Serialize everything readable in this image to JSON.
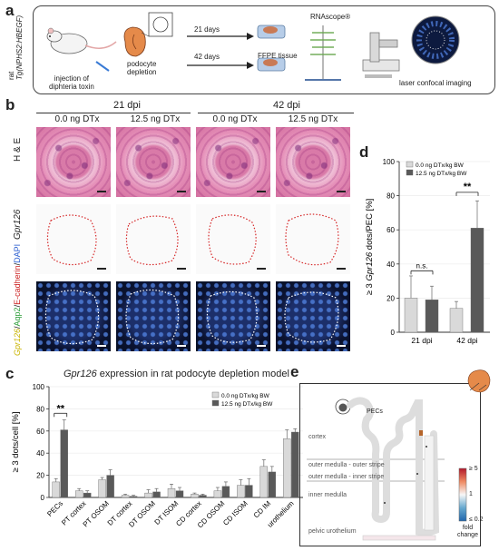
{
  "panels": {
    "a": {
      "label": "a",
      "species": "rat",
      "strain": "Tg(NPHS2:HBEGF)",
      "step1": [
        "injection of",
        "diphteria toxin"
      ],
      "step2": [
        "podocyte",
        "depletion"
      ],
      "time1": "21 days",
      "time2": "42 days",
      "ffpe": "FFPE tissue",
      "rnascope": "RNAscope®",
      "imaging": "laser confocal imaging"
    },
    "b": {
      "label": "b",
      "timepoints": [
        "21 dpi",
        "42 dpi"
      ],
      "conditions": [
        "0.0 ng DTx",
        "12.5 ng DTx",
        "0.0 ng DTx",
        "12.5 ng DTx"
      ],
      "row_labels": [
        "H & E",
        "Gpr126"
      ],
      "fluor_label": [
        "Gpr126",
        "/",
        "Aqp2",
        "/",
        "E-cadherin",
        "/",
        "DAPI"
      ],
      "colors": {
        "gpr126": "#c9b400",
        "aqp2": "#2e9e3a",
        "ecad": "#cc2222",
        "dapi": "#2c5fd0",
        "outline_red": "#d62728"
      }
    },
    "c": {
      "label": "c",
      "title_italic": "Gpr126",
      "title_rest": " expression in rat podocyte depletion model"
    },
    "d": {
      "label": "d"
    },
    "e": {
      "label": "e",
      "pecs": "PECs",
      "regions": [
        "cortex",
        "outer medulla - outer stripe",
        "outer medulla - inner stripe",
        "inner medulla",
        "pelvic urothelium"
      ],
      "colorbar_labels": [
        "≥ 5",
        "1",
        "≤ 0.2"
      ],
      "colorbar_title": [
        "fold",
        "change"
      ]
    }
  },
  "chart_data": [
    {
      "type": "bar",
      "panel": "c",
      "title": "Gpr126 expression in rat podocyte depletion model",
      "ylabel": "≥ 3 dots/cell [%]",
      "ylim": [
        0,
        100
      ],
      "yticks": [
        0,
        20,
        40,
        60,
        80,
        100
      ],
      "categories": [
        "PECs",
        "PT cortex",
        "PT OSOM",
        "DT cortex",
        "DT OSOM",
        "DT ISOM",
        "CD cortex",
        "CD OSOM",
        "CD ISOM",
        "CD IM",
        "urothelium"
      ],
      "series": [
        {
          "name": "0.0 ng DTx/kg BW",
          "color": "#d9d9d9",
          "values": [
            14,
            6,
            16,
            2,
            4,
            8,
            3,
            6,
            11,
            28,
            53
          ],
          "errors": [
            3,
            2,
            2,
            1,
            3,
            4,
            1,
            3,
            5,
            6,
            8
          ]
        },
        {
          "name": "12.5 ng DTx/kg BW",
          "color": "#595959",
          "values": [
            61,
            4,
            20,
            1,
            5,
            6,
            2,
            10,
            11,
            23,
            59
          ],
          "errors": [
            9,
            2,
            5,
            1,
            3,
            3,
            1,
            4,
            6,
            5,
            3
          ]
        }
      ],
      "annotations": [
        "**"
      ],
      "legend": "top-right"
    },
    {
      "type": "bar",
      "panel": "d",
      "ylabel": "≥ 3 Gpr126 dots/PEC [%]",
      "ylim": [
        0,
        100
      ],
      "yticks": [
        0,
        20,
        40,
        60,
        80,
        100
      ],
      "categories": [
        "21 dpi",
        "42 dpi"
      ],
      "series": [
        {
          "name": "0.0 ng DTx/kg BW",
          "color": "#d9d9d9",
          "values": [
            20,
            14
          ],
          "errors": [
            13,
            4
          ]
        },
        {
          "name": "12.5 ng DTx/kg BW",
          "color": "#595959",
          "values": [
            19,
            61
          ],
          "errors": [
            8,
            16
          ]
        }
      ],
      "annotations": [
        "n.s.",
        "**"
      ],
      "legend": "top-left"
    }
  ]
}
